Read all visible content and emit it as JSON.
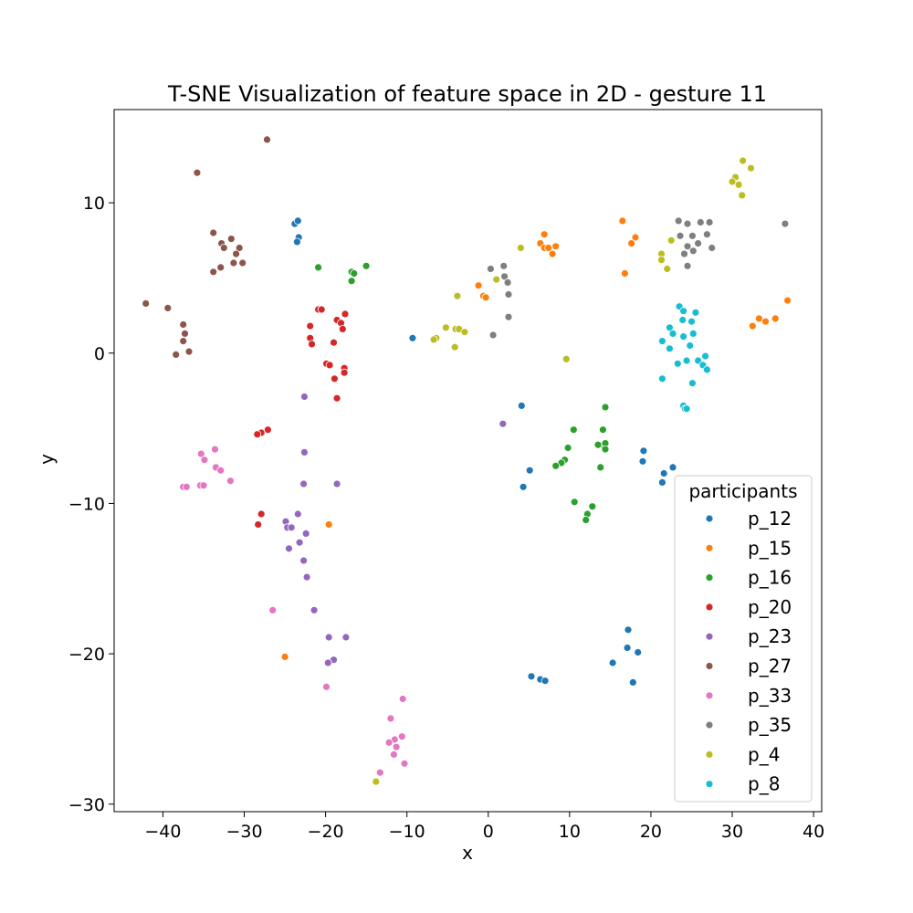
{
  "chart_data": {
    "type": "scatter",
    "title": "T-SNE Visualization of feature space in 2D - gesture 11",
    "xlabel": "x",
    "ylabel": "y",
    "xlim": [
      -46,
      41
    ],
    "ylim": [
      -30.5,
      16.2
    ],
    "xticks": [
      -40,
      -30,
      -20,
      -10,
      0,
      10,
      20,
      30,
      40
    ],
    "yticks": [
      10,
      0,
      -10,
      -20,
      -30
    ],
    "grid": false,
    "legend": {
      "title": "participants",
      "placement": "lower-right"
    },
    "series": [
      {
        "name": "p_12",
        "color": "#1f77b4",
        "points": [
          [
            -23.8,
            8.6
          ],
          [
            -23.4,
            8.8
          ],
          [
            -23.3,
            7.7
          ],
          [
            -23.5,
            7.4
          ],
          [
            -9.3,
            1.0
          ],
          [
            4.1,
            -3.5
          ],
          [
            5.1,
            -7.8
          ],
          [
            4.3,
            -8.9
          ],
          [
            19.1,
            -6.5
          ],
          [
            19.0,
            -7.2
          ],
          [
            22.7,
            -7.6
          ],
          [
            21.6,
            -8.0
          ],
          [
            21.4,
            -8.6
          ],
          [
            17.2,
            -18.4
          ],
          [
            18.4,
            -19.9
          ],
          [
            17.1,
            -19.6
          ],
          [
            15.3,
            -20.6
          ],
          [
            5.3,
            -21.5
          ],
          [
            6.4,
            -21.7
          ],
          [
            7.0,
            -21.8
          ],
          [
            17.8,
            -21.9
          ]
        ]
      },
      {
        "name": "p_15",
        "color": "#ff7f0e",
        "points": [
          [
            6.9,
            7.9
          ],
          [
            6.4,
            7.3
          ],
          [
            6.9,
            7.0
          ],
          [
            7.4,
            7.0
          ],
          [
            8.3,
            7.1
          ],
          [
            7.9,
            6.6
          ],
          [
            16.5,
            8.8
          ],
          [
            18.1,
            7.7
          ],
          [
            17.6,
            7.3
          ],
          [
            16.8,
            5.3
          ],
          [
            -1.2,
            4.5
          ],
          [
            -0.6,
            3.8
          ],
          [
            -0.3,
            3.7
          ],
          [
            36.8,
            3.5
          ],
          [
            33.3,
            2.3
          ],
          [
            34.1,
            2.1
          ],
          [
            35.3,
            2.3
          ],
          [
            32.5,
            1.8
          ],
          [
            -19.6,
            -11.4
          ],
          [
            -25.0,
            -20.2
          ]
        ]
      },
      {
        "name": "p_16",
        "color": "#2ca02c",
        "points": [
          [
            -20.9,
            5.7
          ],
          [
            -16.8,
            5.4
          ],
          [
            -16.5,
            5.3
          ],
          [
            -15.0,
            5.8
          ],
          [
            -16.8,
            4.8
          ],
          [
            14.4,
            -3.6
          ],
          [
            10.5,
            -5.1
          ],
          [
            14.1,
            -5.1
          ],
          [
            14.1,
            -6.1
          ],
          [
            14.4,
            -6.0
          ],
          [
            14.4,
            -6.4
          ],
          [
            13.5,
            -6.1
          ],
          [
            9.8,
            -6.3
          ],
          [
            9.4,
            -7.1
          ],
          [
            9.0,
            -7.3
          ],
          [
            8.3,
            -7.5
          ],
          [
            13.8,
            -7.6
          ],
          [
            10.6,
            -9.9
          ],
          [
            12.8,
            -10.2
          ],
          [
            12.2,
            -10.7
          ],
          [
            12.0,
            -11.1
          ]
        ]
      },
      {
        "name": "p_20",
        "color": "#d62728",
        "points": [
          [
            -20.9,
            2.9
          ],
          [
            -20.5,
            2.9
          ],
          [
            -17.6,
            2.6
          ],
          [
            -18.6,
            2.2
          ],
          [
            -18.1,
            2.0
          ],
          [
            -21.9,
            1.8
          ],
          [
            -17.9,
            1.6
          ],
          [
            -21.9,
            1.0
          ],
          [
            -21.7,
            0.6
          ],
          [
            -19.0,
            0.7
          ],
          [
            -19.9,
            -0.7
          ],
          [
            -19.5,
            -0.8
          ],
          [
            -17.7,
            -1.0
          ],
          [
            -17.7,
            -1.3
          ],
          [
            -18.9,
            -1.7
          ],
          [
            -18.6,
            -3.0
          ],
          [
            -27.1,
            -5.1
          ],
          [
            -27.9,
            -5.3
          ],
          [
            -28.4,
            -5.4
          ],
          [
            -27.9,
            -10.7
          ],
          [
            -28.3,
            -11.4
          ]
        ]
      },
      {
        "name": "p_23",
        "color": "#9467bd",
        "points": [
          [
            -22.6,
            -2.9
          ],
          [
            1.8,
            -4.7
          ],
          [
            -22.6,
            -6.6
          ],
          [
            -22.7,
            -8.7
          ],
          [
            -18.6,
            -8.7
          ],
          [
            -23.4,
            -10.7
          ],
          [
            -24.9,
            -11.2
          ],
          [
            -24.7,
            -11.6
          ],
          [
            -24.2,
            -11.6
          ],
          [
            -22.4,
            -12.0
          ],
          [
            -23.2,
            -12.6
          ],
          [
            -24.5,
            -13.0
          ],
          [
            -22.7,
            -13.8
          ],
          [
            -22.3,
            -14.9
          ],
          [
            -21.4,
            -17.1
          ],
          [
            -19.6,
            -18.9
          ],
          [
            -17.5,
            -18.9
          ],
          [
            -19.0,
            -20.4
          ],
          [
            -19.7,
            -20.6
          ]
        ]
      },
      {
        "name": "p_27",
        "color": "#8c564b",
        "points": [
          [
            -27.2,
            14.2
          ],
          [
            -35.8,
            12.0
          ],
          [
            -33.8,
            8.0
          ],
          [
            -31.6,
            7.6
          ],
          [
            -32.8,
            7.3
          ],
          [
            -32.5,
            7.0
          ],
          [
            -30.6,
            7.0
          ],
          [
            -31.0,
            6.6
          ],
          [
            -31.3,
            6.0
          ],
          [
            -30.2,
            6.0
          ],
          [
            -32.9,
            5.7
          ],
          [
            -33.8,
            5.4
          ],
          [
            -42.1,
            3.3
          ],
          [
            -39.4,
            3.0
          ],
          [
            -37.5,
            1.9
          ],
          [
            -37.3,
            1.3
          ],
          [
            -37.5,
            0.8
          ],
          [
            -36.8,
            0.1
          ],
          [
            -38.4,
            -0.1
          ]
        ]
      },
      {
        "name": "p_33",
        "color": "#e377c2",
        "points": [
          [
            -33.6,
            -6.4
          ],
          [
            -35.3,
            -6.7
          ],
          [
            -34.9,
            -7.1
          ],
          [
            -33.5,
            -7.6
          ],
          [
            -32.9,
            -7.8
          ],
          [
            -31.7,
            -8.5
          ],
          [
            -35.4,
            -8.8
          ],
          [
            -35.0,
            -8.8
          ],
          [
            -37.5,
            -8.9
          ],
          [
            -37.1,
            -8.9
          ],
          [
            -26.5,
            -17.1
          ],
          [
            -19.9,
            -22.2
          ],
          [
            -10.5,
            -23.0
          ],
          [
            -12.0,
            -24.3
          ],
          [
            -10.6,
            -25.5
          ],
          [
            -11.5,
            -25.7
          ],
          [
            -12.2,
            -25.9
          ],
          [
            -11.3,
            -26.2
          ],
          [
            -11.6,
            -26.7
          ],
          [
            -10.3,
            -27.3
          ],
          [
            -13.3,
            -27.9
          ]
        ]
      },
      {
        "name": "p_35",
        "color": "#7f7f7f",
        "points": [
          [
            23.4,
            8.8
          ],
          [
            24.5,
            8.6
          ],
          [
            26.1,
            8.7
          ],
          [
            27.2,
            8.7
          ],
          [
            36.5,
            8.6
          ],
          [
            23.6,
            7.8
          ],
          [
            25.1,
            7.8
          ],
          [
            26.9,
            7.9
          ],
          [
            24.5,
            7.1
          ],
          [
            25.8,
            7.3
          ],
          [
            25.2,
            6.8
          ],
          [
            24.1,
            6.6
          ],
          [
            27.5,
            7.0
          ],
          [
            24.5,
            5.8
          ],
          [
            1.9,
            5.8
          ],
          [
            0.3,
            5.6
          ],
          [
            2.0,
            5.1
          ],
          [
            2.4,
            4.7
          ],
          [
            2.5,
            3.9
          ],
          [
            2.5,
            2.4
          ],
          [
            0.6,
            1.2
          ]
        ]
      },
      {
        "name": "p_4",
        "color": "#bcbd22",
        "points": [
          [
            31.3,
            12.8
          ],
          [
            32.3,
            12.3
          ],
          [
            30.4,
            11.7
          ],
          [
            30.0,
            11.4
          ],
          [
            30.8,
            11.2
          ],
          [
            31.2,
            10.5
          ],
          [
            22.5,
            7.5
          ],
          [
            4.0,
            7.0
          ],
          [
            21.3,
            6.6
          ],
          [
            21.3,
            6.2
          ],
          [
            22.0,
            5.6
          ],
          [
            1.0,
            4.9
          ],
          [
            -3.8,
            3.8
          ],
          [
            -5.2,
            1.7
          ],
          [
            -4.0,
            1.6
          ],
          [
            -3.6,
            1.6
          ],
          [
            -2.9,
            1.4
          ],
          [
            -6.4,
            1.0
          ],
          [
            -6.7,
            0.9
          ],
          [
            -4.1,
            0.4
          ],
          [
            9.6,
            -0.4
          ],
          [
            -13.8,
            -28.5
          ]
        ]
      },
      {
        "name": "p_8",
        "color": "#17becf",
        "points": [
          [
            23.5,
            3.1
          ],
          [
            24.0,
            2.8
          ],
          [
            25.5,
            2.7
          ],
          [
            23.9,
            2.2
          ],
          [
            25.0,
            2.1
          ],
          [
            22.3,
            1.7
          ],
          [
            22.7,
            1.3
          ],
          [
            24.0,
            1.1
          ],
          [
            25.2,
            1.3
          ],
          [
            21.4,
            0.8
          ],
          [
            22.3,
            0.3
          ],
          [
            24.8,
            0.5
          ],
          [
            26.7,
            -0.2
          ],
          [
            24.4,
            -0.5
          ],
          [
            25.8,
            -0.5
          ],
          [
            23.3,
            -0.7
          ],
          [
            26.4,
            -0.8
          ],
          [
            26.9,
            -1.1
          ],
          [
            21.4,
            -1.7
          ],
          [
            25.1,
            -2.0
          ],
          [
            24.0,
            -3.5
          ],
          [
            24.2,
            -3.7
          ],
          [
            24.4,
            -3.7
          ]
        ]
      }
    ]
  }
}
